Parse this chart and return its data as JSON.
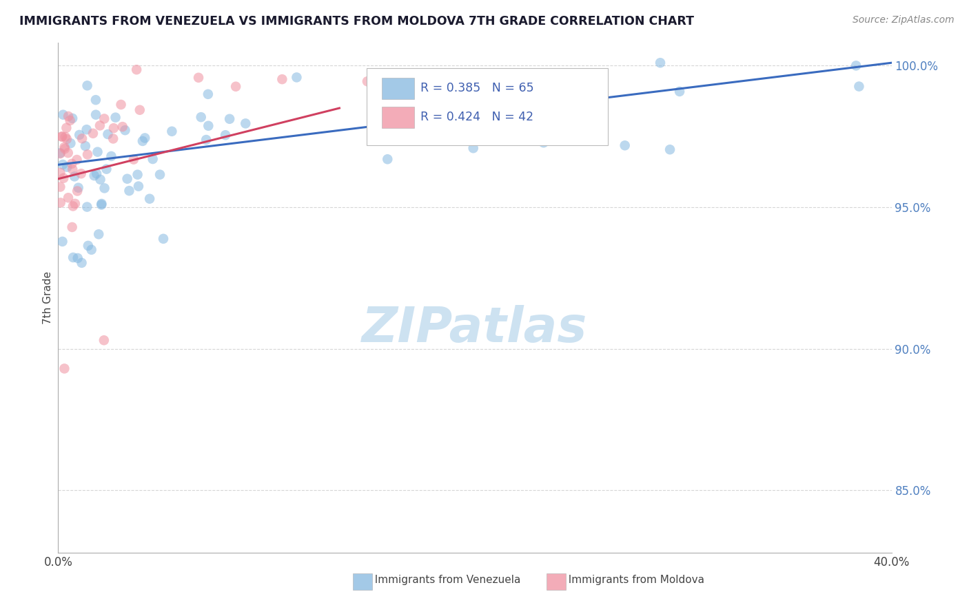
{
  "title": "IMMIGRANTS FROM VENEZUELA VS IMMIGRANTS FROM MOLDOVA 7TH GRADE CORRELATION CHART",
  "source": "Source: ZipAtlas.com",
  "ylabel": "7th Grade",
  "xlim": [
    0.0,
    0.4
  ],
  "ylim": [
    0.828,
    1.008
  ],
  "xticks": [
    0.0,
    0.1,
    0.2,
    0.3,
    0.4
  ],
  "xticklabels": [
    "0.0%",
    "",
    "",
    "",
    "40.0%"
  ],
  "yticks": [
    0.85,
    0.9,
    0.95,
    1.0
  ],
  "yticklabels": [
    "85.0%",
    "90.0%",
    "95.0%",
    "100.0%"
  ],
  "venezuela_color": "#85b8e0",
  "moldova_color": "#f090a0",
  "venezuela_line_color": "#3a6bbf",
  "moldova_line_color": "#d04060",
  "dot_alpha": 0.55,
  "dot_size": 110,
  "watermark_color": "#c8dff0",
  "tick_color": "#5080c0",
  "legend_text_color": "#4060b0",
  "R_ven": 0.385,
  "N_ven": 65,
  "R_mol": 0.424,
  "N_mol": 42,
  "ven_line_x0": 0.0,
  "ven_line_x1": 0.4,
  "ven_line_y0": 0.965,
  "ven_line_y1": 1.001,
  "mol_line_x0": 0.0,
  "mol_line_x1": 0.135,
  "mol_line_y0": 0.96,
  "mol_line_y1": 0.985
}
